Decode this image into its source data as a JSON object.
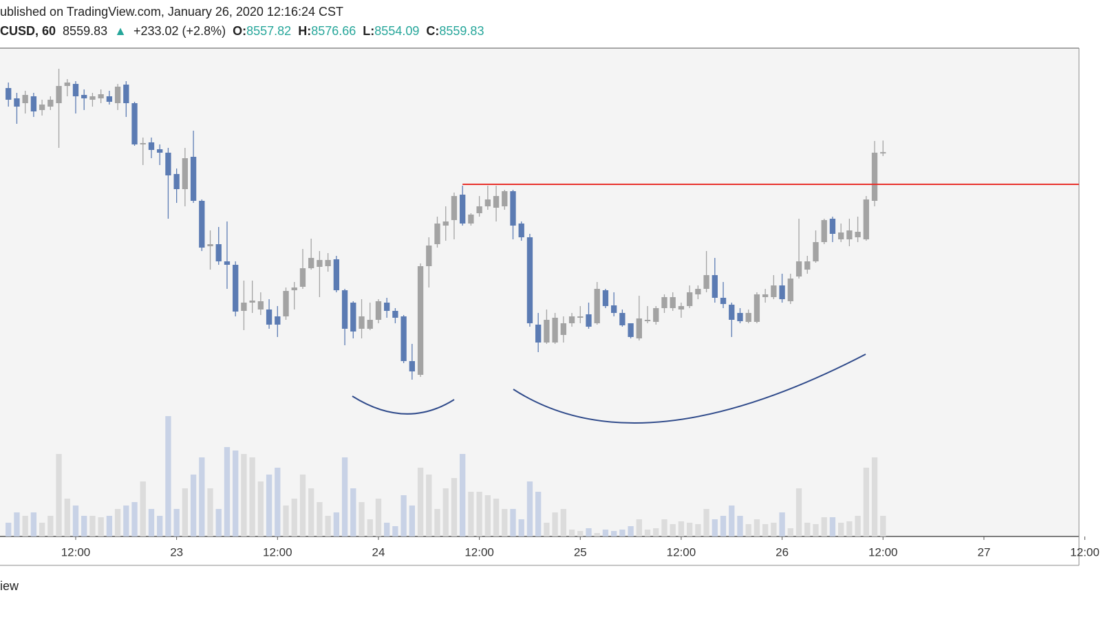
{
  "chart_data": {
    "type": "candlestick",
    "title": "ublished on TradingView.com, January 26, 2020 12:16:24 CST",
    "symbol": "CUSD, 60",
    "arrow": "▲",
    "change": "+233.02 (+2.8%)",
    "ohlc_labels": [
      "O:",
      "H:",
      "L:",
      "C:"
    ],
    "footer": "iew",
    "up_color": "#a3a3a3",
    "down_color": "#5b7bb3",
    "volume_up_color": "#dcdcdc",
    "volume_down_color": "#c8d2e6",
    "x": [
      "22 04:00",
      "22 05:00",
      "22 06:00",
      "22 07:00",
      "22 08:00",
      "22 09:00",
      "22 10:00",
      "22 11:00",
      "22 12:00",
      "22 13:00",
      "22 14:00",
      "22 15:00",
      "22 16:00",
      "22 17:00",
      "22 18:00",
      "22 19:00",
      "22 20:00",
      "22 21:00",
      "22 22:00",
      "22 23:00",
      "23 00:00",
      "23 01:00",
      "23 02:00",
      "23 03:00",
      "23 04:00",
      "23 05:00",
      "23 06:00",
      "23 07:00",
      "23 08:00",
      "23 09:00",
      "23 10:00",
      "23 11:00",
      "23 12:00",
      "23 13:00",
      "23 14:00",
      "23 15:00",
      "23 16:00",
      "23 17:00",
      "23 18:00",
      "23 19:00",
      "23 20:00",
      "23 21:00",
      "23 22:00",
      "23 23:00",
      "24 00:00",
      "24 01:00",
      "24 02:00",
      "24 03:00",
      "24 04:00",
      "24 05:00",
      "24 06:00",
      "24 07:00",
      "24 08:00",
      "24 09:00",
      "24 10:00",
      "24 11:00",
      "24 12:00",
      "24 13:00",
      "24 14:00",
      "24 15:00",
      "24 16:00",
      "24 17:00",
      "24 18:00",
      "24 19:00",
      "24 20:00",
      "24 21:00",
      "24 22:00",
      "24 23:00",
      "25 00:00",
      "25 01:00",
      "25 02:00",
      "25 03:00",
      "25 04:00",
      "25 05:00",
      "25 06:00",
      "25 07:00",
      "25 08:00",
      "25 09:00",
      "25 10:00",
      "25 11:00",
      "25 12:00",
      "25 13:00",
      "25 14:00",
      "25 15:00",
      "25 16:00",
      "25 17:00",
      "25 18:00",
      "25 19:00",
      "25 20:00",
      "25 21:00",
      "25 22:00",
      "25 23:00",
      "26 00:00",
      "26 01:00",
      "26 02:00",
      "26 03:00",
      "26 04:00",
      "26 05:00",
      "26 06:00",
      "26 07:00",
      "26 08:00",
      "26 09:00",
      "26 10:00",
      "26 11:00",
      "26 12:00"
    ],
    "open": [
      8653,
      8638,
      8631,
      8641,
      8621,
      8626,
      8631,
      8656,
      8659,
      8643,
      8636,
      8638,
      8641,
      8631,
      8658,
      8631,
      8571,
      8574,
      8564,
      8559,
      8528,
      8506,
      8553,
      8489,
      8423,
      8426,
      8401,
      8396,
      8329,
      8341,
      8331,
      8331,
      8321,
      8321,
      8359,
      8364,
      8391,
      8393,
      8394,
      8404,
      8359,
      8341,
      8303,
      8303,
      8316,
      8341,
      8329,
      8321,
      8256,
      8236,
      8394,
      8426,
      8453,
      8461,
      8498,
      8456,
      8471,
      8481,
      8479,
      8481,
      8503,
      8456,
      8436,
      8309,
      8283,
      8283,
      8294,
      8311,
      8319,
      8324,
      8311,
      8359,
      8337,
      8326,
      8311,
      8289,
      8314,
      8313,
      8333,
      8333,
      8331,
      8336,
      8353,
      8361,
      8381,
      8348,
      8338,
      8326,
      8313,
      8313,
      8349,
      8349,
      8366,
      8343,
      8379,
      8389,
      8401,
      8429,
      8463,
      8433,
      8433,
      8436,
      8433,
      8489,
      8557.82
    ],
    "high": [
      8661,
      8646,
      8649,
      8646,
      8636,
      8641,
      8681,
      8666,
      8663,
      8651,
      8646,
      8651,
      8649,
      8659,
      8663,
      8633,
      8581,
      8581,
      8571,
      8566,
      8536,
      8566,
      8591,
      8491,
      8446,
      8451,
      8459,
      8401,
      8373,
      8373,
      8356,
      8346,
      8336,
      8363,
      8371,
      8419,
      8434,
      8416,
      8413,
      8409,
      8361,
      8343,
      8346,
      8341,
      8346,
      8348,
      8333,
      8323,
      8281,
      8398,
      8436,
      8466,
      8481,
      8501,
      8511,
      8471,
      8496,
      8511,
      8511,
      8505,
      8505,
      8459,
      8441,
      8326,
      8331,
      8326,
      8321,
      8326,
      8336,
      8341,
      8371,
      8361,
      8356,
      8331,
      8311,
      8351,
      8336,
      8336,
      8353,
      8356,
      8341,
      8366,
      8366,
      8416,
      8406,
      8371,
      8341,
      8333,
      8331,
      8356,
      8361,
      8381,
      8383,
      8383,
      8463,
      8409,
      8446,
      8463,
      8466,
      8456,
      8463,
      8466,
      8496,
      8576,
      8576.66
    ],
    "low": [
      8626,
      8601,
      8616,
      8611,
      8613,
      8621,
      8566,
      8641,
      8616,
      8621,
      8626,
      8631,
      8629,
      8621,
      8611,
      8569,
      8541,
      8551,
      8541,
      8463,
      8486,
      8481,
      8486,
      8416,
      8389,
      8396,
      8361,
      8321,
      8301,
      8326,
      8323,
      8303,
      8291,
      8316,
      8331,
      8361,
      8389,
      8349,
      8386,
      8356,
      8279,
      8289,
      8289,
      8301,
      8311,
      8319,
      8311,
      8253,
      8229,
      8233,
      8363,
      8421,
      8431,
      8433,
      8453,
      8453,
      8466,
      8476,
      8459,
      8476,
      8433,
      8431,
      8306,
      8269,
      8281,
      8281,
      8283,
      8306,
      8311,
      8303,
      8309,
      8333,
      8321,
      8306,
      8289,
      8286,
      8311,
      8309,
      8326,
      8329,
      8319,
      8333,
      8346,
      8356,
      8341,
      8333,
      8291,
      8311,
      8311,
      8311,
      8341,
      8346,
      8341,
      8339,
      8376,
      8383,
      8399,
      8426,
      8429,
      8429,
      8423,
      8429,
      8431,
      8481,
      8554.09
    ],
    "close": [
      8636,
      8626,
      8643,
      8619,
      8629,
      8636,
      8656,
      8661,
      8641,
      8638,
      8641,
      8644,
      8633,
      8655,
      8631,
      8571,
      8573,
      8563,
      8559,
      8526,
      8506,
      8551,
      8489,
      8421,
      8426,
      8401,
      8396,
      8328,
      8341,
      8344,
      8343,
      8309,
      8309,
      8358,
      8363,
      8391,
      8406,
      8403,
      8403,
      8359,
      8303,
      8299,
      8321,
      8316,
      8343,
      8329,
      8319,
      8256,
      8241,
      8394,
      8424,
      8456,
      8459,
      8496,
      8456,
      8469,
      8481,
      8491,
      8496,
      8503,
      8453,
      8436,
      8311,
      8283,
      8316,
      8319,
      8311,
      8321,
      8321,
      8306,
      8361,
      8336,
      8326,
      8308,
      8291,
      8318,
      8316,
      8333,
      8349,
      8349,
      8336,
      8356,
      8361,
      8381,
      8348,
      8339,
      8316,
      8314,
      8326,
      8353,
      8353,
      8366,
      8346,
      8376,
      8401,
      8401,
      8429,
      8461,
      8441,
      8443,
      8446,
      8444,
      8491,
      8559,
      8559.83
    ],
    "volume": [
      20,
      35,
      30,
      35,
      20,
      30,
      120,
      55,
      45,
      30,
      30,
      28,
      30,
      40,
      45,
      50,
      80,
      40,
      30,
      175,
      40,
      70,
      90,
      115,
      70,
      40,
      130,
      125,
      120,
      115,
      80,
      90,
      100,
      45,
      55,
      90,
      70,
      50,
      30,
      35,
      115,
      70,
      50,
      25,
      55,
      20,
      15,
      60,
      45,
      100,
      90,
      40,
      70,
      85,
      120,
      65,
      65,
      60,
      55,
      40,
      40,
      25,
      80,
      65,
      20,
      35,
      40,
      10,
      8,
      12,
      5,
      10,
      8,
      10,
      15,
      25,
      10,
      12,
      25,
      18,
      22,
      20,
      18,
      40,
      25,
      30,
      45,
      30,
      18,
      25,
      18,
      20,
      35,
      12,
      70,
      20,
      18,
      28,
      28,
      20,
      22,
      30,
      100,
      115,
      30
    ],
    "ylim": [
      8001,
      8711
    ],
    "volume_lim": [
      0,
      710
    ],
    "xlim": [
      "22 03:00",
      "27 11:18"
    ],
    "xticks": [
      {
        "value": "22 12:00",
        "label": "12:00"
      },
      {
        "value": "23 00:00",
        "label": "23"
      },
      {
        "value": "23 12:00",
        "label": "12:00"
      },
      {
        "value": "24 00:00",
        "label": "24"
      },
      {
        "value": "24 12:00",
        "label": "12:00"
      },
      {
        "value": "25 00:00",
        "label": "25"
      },
      {
        "value": "25 12:00",
        "label": "12:00"
      },
      {
        "value": "26 00:00",
        "label": "26"
      },
      {
        "value": "26 12:00",
        "label": "12:00"
      },
      {
        "value": "27 00:00",
        "label": "27"
      },
      {
        "value": "27 12:00",
        "label": "12:00"
      }
    ],
    "resistance": {
      "value": 8513,
      "start": "24 10:00",
      "color": "#e8302a"
    }
  }
}
